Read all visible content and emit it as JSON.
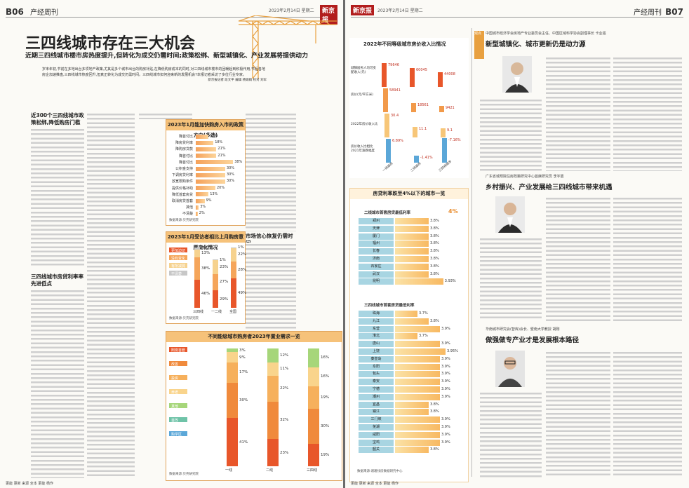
{
  "left_page": {
    "page_no": "B06",
    "section": "产经周刊",
    "date": "2023年2月14日 星期二",
    "paper_logo": "新京报",
    "headline": "三四线城市存在三大机会",
    "subheadline": "近期三四线城市楼市房热度提升,但转化为成交仍需时间;政策松绑、新型城镇化、产业发展将提供动力",
    "lead": "岁末年初,节前在多地出台多项地产政策,尤其是多个城市出台的购房补贴,在降低购房成本的同时,对三四线城市楼市的回暖起到积极作用,节后各地房企加速推盘,三四线城市热度回升,但真正转化为成交仍需时间。三四线城市如何迎来新的发展机会?本报记者采访了多位行业专家。",
    "byline": "新京报记者 段文平 编辑 杨娟娟 校对 刘军",
    "section_titles": [
      "近300个三四线城市政策松绑,降低购房门槛",
      "市场信心恢复仍需时间",
      "三四线城市房贷利率率先进低点"
    ],
    "footer": "更能 更新 来源 全本 更能 杨作"
  },
  "right_page": {
    "page_no": "B07",
    "section": "产经周刊",
    "date": "2023年2月14日 星期二",
    "paper_logo": "新京报",
    "tag": "观点",
    "experts": [
      {
        "org": "中国城市经济学会房地产专业委员会主任、中国区域科学协会副理事长 卡业强",
        "title": "新型城镇化、城市更新仍是动力源"
      },
      {
        "org": "广东省城规院住房政策研究中心首席研究员 李宇嘉",
        "title": "乡村振兴、产业发展给三四线城市带来机遇"
      },
      {
        "org": "华南城市研究会(智库)会长、暨南大学教授 胡刚",
        "title": "做强做专产业才是发展根本路径"
      }
    ],
    "footer": "更能 更新 来源 全本 更能 杨作"
  },
  "policy_chart": {
    "title": "2023年1月能加快购房入市的政策方向(多选)",
    "source": "数据来源:贝壳研究院",
    "chart_data": {
      "type": "bar",
      "title": "2023年1月能加快购房入市的政策方向(多选)",
      "categories": [
        "降首付比",
        "降房贷利率",
        "降购房贷款",
        "降首付比",
        "降首付比",
        "公积金支持",
        "下调房贷利率",
        "放宽限购条件",
        "提供价格补助",
        "降低首套房贷",
        "取消房贷首套",
        "其他",
        "不清楚"
      ],
      "values": [
        13,
        18,
        21,
        21,
        38,
        30,
        30,
        30,
        20,
        13,
        9,
        3,
        2
      ],
      "value_labels": [
        "13%",
        "18%",
        "21%",
        "21%",
        "38%",
        "30%",
        "30%",
        "30%",
        "20%",
        "13%",
        "9%",
        "3%",
        "2%"
      ]
    }
  },
  "mood_chart": {
    "title": "2023年1月受访者相比上月购房意愿变化情况",
    "source": "数据来源:贝壳研究院",
    "legend": [
      "更加迫切",
      "没有变化",
      "有所减弱",
      "不清楚"
    ],
    "legend_colors": [
      "#e8562a",
      "#f5a55a",
      "#f6d28e",
      "#c7c7c7"
    ],
    "chart_data": {
      "type": "bar",
      "title": "2023年1月受访者相比上月购房意愿变化情况",
      "categories": [
        "三四线",
        "一二线",
        "全国"
      ],
      "series": [
        {
          "name": "更加迫切",
          "values": [
            46,
            29,
            49
          ]
        },
        {
          "name": "没有变化",
          "values": [
            38,
            27,
            28
          ]
        },
        {
          "name": "有所减弱",
          "values": [
            13,
            23,
            22
          ]
        },
        {
          "name": "不清楚",
          "values": [
            3,
            1,
            1
          ]
        }
      ],
      "value_labels": [
        [
          "46%",
          "38%",
          "13%",
          "3%"
        ],
        [
          "29%",
          "27%",
          "23%",
          "1%"
        ],
        [
          "49%",
          "28%",
          "22%",
          "1%"
        ]
      ]
    }
  },
  "demand_chart": {
    "title": "不同能级城市购房者2023年置业需求一览",
    "source": "数据来源:贝壳研究院",
    "legend": [
      "刚需首套",
      "改善",
      "投资",
      "养老",
      "其他",
      "首改",
      "购学区"
    ],
    "legend_colors": [
      "#e8562a",
      "#f08a3c",
      "#f6b05c",
      "#f9d48c",
      "#a6d67a",
      "#6fc3a8",
      "#5ba7d8"
    ],
    "chart_data": {
      "type": "bar",
      "title": "不同能级城市购房者2023年置业需求一览",
      "categories": [
        "一线",
        "二线",
        "三四线"
      ],
      "series": [
        {
          "name": "刚需首套",
          "values": [
            41,
            23,
            19
          ]
        },
        {
          "name": "改善",
          "values": [
            30,
            32,
            30
          ]
        },
        {
          "name": "投资",
          "values": [
            17,
            22,
            19
          ]
        },
        {
          "name": "养老",
          "values": [
            9,
            11,
            16
          ]
        },
        {
          "name": "其他",
          "values": [
            3,
            12,
            16
          ]
        }
      ],
      "value_labels": [
        [
          "41%",
          "30%",
          "17%",
          "9%",
          "3%"
        ],
        [
          "23%",
          "32%",
          "22%",
          "11%",
          "12%"
        ],
        [
          "19%",
          "30%",
          "19%",
          "16%",
          "16%"
        ]
      ]
    }
  },
  "income_chart": {
    "title": "2022年不同等级城市房价收入比情况",
    "y_labels": [
      "城镇居民人均可支配收入(元)",
      "房价(元/平方米)",
      "2022年房价收入比",
      "房价收入比相比2021年涨跌幅度"
    ],
    "chart_data": {
      "type": "bar",
      "title": "2022年不同等级城市房价收入比情况",
      "categories": [
        "一线城市",
        "二线城市",
        "三四线城市"
      ],
      "series": [
        {
          "name": "城镇居民人均可支配收入(元)",
          "values": [
            79646,
            60045,
            44008
          ]
        },
        {
          "name": "房价(元/平方米)",
          "values": [
            58941,
            18561,
            9421
          ]
        },
        {
          "name": "2022年房价收入比",
          "values": [
            30.4,
            11.1,
            9.1
          ]
        },
        {
          "name": "涨跌幅度",
          "values": [
            6.89,
            -1.41,
            -7.16
          ]
        }
      ],
      "value_labels": [
        "79646",
        "58941",
        "30.4",
        "6.89%",
        "60045",
        "18561",
        "11.1",
        "-1.41%",
        "44008",
        "9421",
        "9.1",
        "-7.16%"
      ]
    }
  },
  "rate_chart": {
    "title": "房贷利率跌至4%以下的城市一览",
    "sub1": "二线城市首套房贷最低利率",
    "threshold": "4%",
    "sub2": "三四线城市首套房贷最低利率",
    "source": "数据来源:诸葛找房数据研究中心",
    "chart_data": {
      "type": "bar",
      "title": "房贷利率跌至4%以下的城市一览",
      "series": [
        {
          "name": "二线城市首套房贷最低利率",
          "categories": [
            "郑州",
            "天津",
            "厦门",
            "福州",
            "长春",
            "济南",
            "石家庄",
            "武汉",
            "昆明"
          ],
          "values": [
            3.8,
            3.8,
            3.8,
            3.8,
            3.8,
            3.8,
            3.8,
            3.8,
            3.93
          ]
        },
        {
          "name": "三四线城市首套房贷最低利率",
          "categories": [
            "珠海",
            "九江",
            "东营",
            "淮北",
            "唐山",
            "上饶",
            "秦皇岛",
            "阜阳",
            "包头",
            "泰安",
            "宁德",
            "潮州",
            "宜昌",
            "镇江",
            "三门峡",
            "芜湖",
            "咸阳",
            "宝鸡",
            "韶关"
          ],
          "values": [
            3.7,
            3.8,
            3.9,
            3.7,
            3.9,
            3.95,
            3.9,
            3.9,
            3.9,
            3.9,
            3.9,
            3.9,
            3.8,
            3.8,
            3.9,
            3.9,
            3.9,
            3.9,
            3.8
          ]
        }
      ],
      "value_labels_tier2": [
        "3.8%",
        "3.8%",
        "3.8%",
        "3.8%",
        "3.8%",
        "3.8%",
        "3.8%",
        "3.8%",
        "3.93%"
      ],
      "value_labels_tier3": [
        "3.7%",
        "3.8%",
        "3.9%",
        "3.7%",
        "3.9%",
        "3.95%",
        "3.9%",
        "3.9%",
        "3.9%",
        "3.9%",
        "3.9%",
        "3.9%",
        "3.8%",
        "3.8%",
        "3.9%",
        "3.9%",
        "3.9%",
        "3.9%",
        "3.8%"
      ]
    }
  }
}
